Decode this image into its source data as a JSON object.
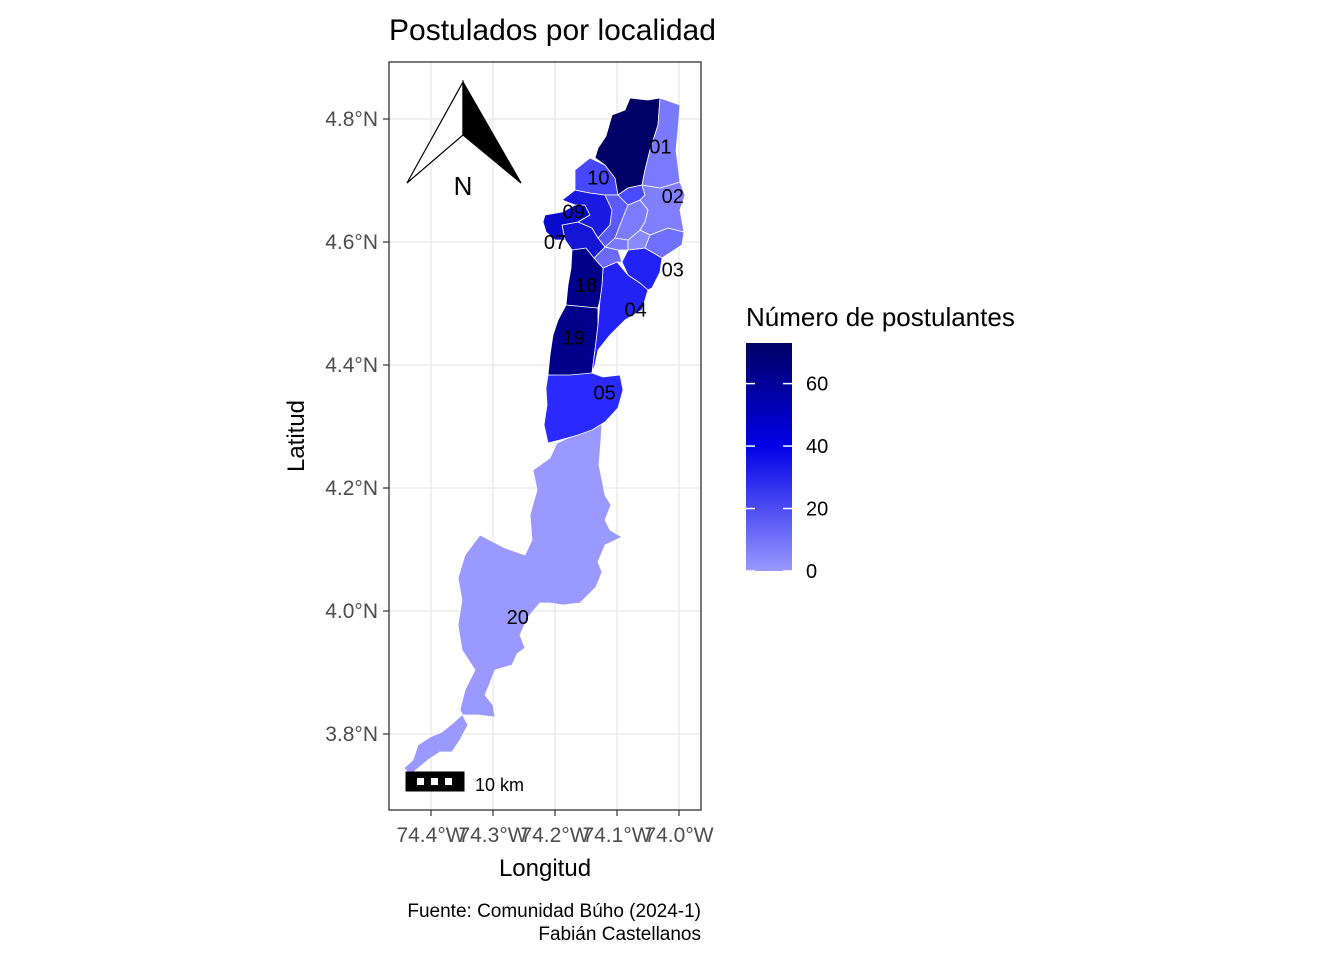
{
  "title": "Postulados por localidad",
  "x_axis": {
    "label": "Longitud",
    "ticks": [
      {
        "value": -74.4,
        "label": "74.4°W"
      },
      {
        "value": -74.3,
        "label": "74.3°W"
      },
      {
        "value": -74.2,
        "label": "74.2°W"
      },
      {
        "value": -74.1,
        "label": "74.1°W"
      },
      {
        "value": -74.0,
        "label": "74.0°W"
      }
    ]
  },
  "y_axis": {
    "label": "Latitud",
    "ticks": [
      {
        "value": 3.8,
        "label": "3.8°N"
      },
      {
        "value": 4.0,
        "label": "4.0°N"
      },
      {
        "value": 4.2,
        "label": "4.2°N"
      },
      {
        "value": 4.4,
        "label": "4.4°N"
      },
      {
        "value": 4.6,
        "label": "4.6°N"
      },
      {
        "value": 4.8,
        "label": "4.8°N"
      }
    ]
  },
  "legend": {
    "title": "Número de postulantes",
    "ticks": [
      "0",
      "20",
      "40",
      "60"
    ],
    "colors": {
      "low": "#9999ff",
      "mid": "#0000e6",
      "high": "#000066"
    }
  },
  "north_arrow": {
    "label": "N"
  },
  "scale_bar": {
    "label": "10 km"
  },
  "caption": {
    "line1": "Fuente: Comunidad Búho (2024-1)",
    "line2": "Fabián Castellanos"
  },
  "chart_data": {
    "type": "choropleth",
    "title": "Postulados por localidad",
    "xlabel": "Longitud",
    "ylabel": "Latitud",
    "xlim": [
      -74.45,
      -73.98
    ],
    "ylim": [
      3.72,
      4.85
    ],
    "grid": true,
    "legend_position": "right",
    "fill_range": [
      0,
      73
    ],
    "regions": [
      {
        "label": "01",
        "lon": -74.03,
        "lat": 4.755
      },
      {
        "label": "02",
        "lon": -74.01,
        "lat": 4.675
      },
      {
        "label": "03",
        "lon": -74.01,
        "lat": 4.555
      },
      {
        "label": "04",
        "lon": -74.07,
        "lat": 4.49
      },
      {
        "label": "05",
        "lon": -74.12,
        "lat": 4.355
      },
      {
        "label": "07",
        "lon": -74.2,
        "lat": 4.6
      },
      {
        "label": "09",
        "lon": -74.17,
        "lat": 4.65
      },
      {
        "label": "10",
        "lon": -74.13,
        "lat": 4.705
      },
      {
        "label": "18",
        "lon": -74.15,
        "lat": 4.53
      },
      {
        "label": "19",
        "lon": -74.17,
        "lat": 4.445
      },
      {
        "label": "20",
        "lon": -74.26,
        "lat": 3.99
      }
    ]
  }
}
